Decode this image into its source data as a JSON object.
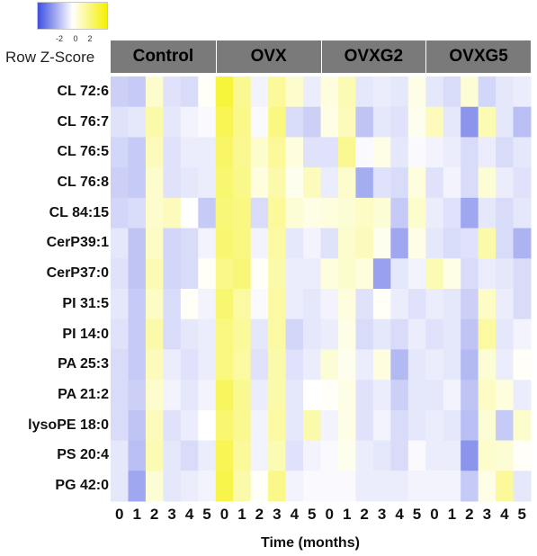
{
  "legend": {
    "title": "Row Z-Score",
    "ticks": [
      "-2",
      "0",
      "2"
    ],
    "colors": {
      "low": "#3f4fe0",
      "mid": "#ffffff",
      "high": "#f4f000"
    }
  },
  "chart_data": {
    "type": "heatmap",
    "xlabel": "Time (months)",
    "groups": [
      "Control",
      "OVX",
      "OVXG2",
      "OVXG5"
    ],
    "columns": [
      "0",
      "1",
      "2",
      "3",
      "4",
      "5",
      "0",
      "1",
      "2",
      "3",
      "4",
      "5",
      "0",
      "1",
      "2",
      "3",
      "4",
      "5",
      "0",
      "1",
      "2",
      "3",
      "4",
      "5"
    ],
    "rows": [
      "CL 72:6",
      "CL 76:7",
      "CL 76:5",
      "CL 76:8",
      "CL 84:15",
      "CerP39:1",
      "CerP37:0",
      "PI 31:5",
      "PI 14:0",
      "PA 25:3",
      "PA 21:2",
      "lysoPE 18:0",
      "PS 20:4",
      "PG 42:0"
    ],
    "value_range": [
      -3,
      3
    ],
    "values": [
      [
        -0.8,
        -0.9,
        0.6,
        -0.5,
        -0.6,
        0.1,
        2.3,
        1.3,
        -0.2,
        1.2,
        0.6,
        -0.3,
        0.4,
        0.9,
        -0.4,
        -0.3,
        -0.4,
        0.3,
        -0.4,
        -0.6,
        0.5,
        -0.7,
        -0.4,
        -0.3
      ],
      [
        -0.5,
        -0.4,
        1.0,
        -0.4,
        -0.2,
        -0.1,
        2.0,
        1.4,
        -0.1,
        1.5,
        -0.6,
        -0.8,
        0.3,
        0.8,
        -1.0,
        -0.4,
        -0.5,
        0.2,
        0.8,
        -0.4,
        -1.8,
        0.9,
        -0.4,
        -1.1
      ],
      [
        -0.7,
        -0.9,
        0.8,
        -0.5,
        -0.3,
        -0.3,
        1.8,
        1.3,
        0.6,
        1.2,
        0.4,
        -0.5,
        -0.5,
        1.3,
        -0.1,
        0.3,
        -0.4,
        -0.1,
        -0.2,
        -0.3,
        -0.6,
        -0.3,
        -0.6,
        -0.4
      ],
      [
        -0.8,
        -0.9,
        0.6,
        -0.5,
        -0.4,
        -0.3,
        1.7,
        1.4,
        0.4,
        1.0,
        0.2,
        0.8,
        -0.3,
        0.6,
        -1.4,
        -0.5,
        -0.6,
        0.4,
        -0.5,
        -0.2,
        -0.6,
        0.5,
        -0.3,
        -0.5
      ],
      [
        -0.7,
        -0.6,
        0.6,
        0.8,
        0.0,
        -0.9,
        1.6,
        1.5,
        -0.6,
        1.2,
        0.5,
        0.3,
        0.4,
        0.5,
        0.7,
        0.5,
        -0.9,
        0.6,
        -0.3,
        -0.5,
        -1.5,
        -0.4,
        -0.6,
        -0.4
      ],
      [
        -0.4,
        -1.0,
        0.7,
        -0.7,
        -0.6,
        -0.2,
        1.7,
        1.5,
        -0.2,
        1.1,
        -0.4,
        -0.2,
        -0.5,
        0.6,
        0.8,
        0.2,
        -1.5,
        0.3,
        -0.4,
        -0.6,
        -0.5,
        1.0,
        -0.6,
        -1.3
      ],
      [
        -0.5,
        -1.0,
        0.9,
        -0.7,
        -0.6,
        0.1,
        1.4,
        1.6,
        0.1,
        1.0,
        -0.3,
        -0.3,
        0.4,
        0.6,
        0.4,
        -1.6,
        -0.4,
        -0.2,
        0.9,
        0.3,
        -0.6,
        -0.3,
        -0.4,
        -0.6
      ],
      [
        -0.4,
        -0.9,
        0.7,
        -0.6,
        0.1,
        -0.2,
        1.7,
        1.1,
        -0.1,
        1.1,
        -0.3,
        -0.4,
        -0.2,
        0.4,
        -0.5,
        0.1,
        -0.3,
        -0.5,
        -0.3,
        -0.4,
        -0.8,
        0.7,
        -0.3,
        -0.6
      ],
      [
        -0.5,
        -0.9,
        1.0,
        -0.6,
        -0.4,
        -0.3,
        1.5,
        1.2,
        -0.4,
        1.1,
        -0.7,
        -0.4,
        -0.3,
        0.3,
        -0.6,
        -0.4,
        -0.6,
        -0.3,
        -0.5,
        -0.4,
        -1.0,
        1.1,
        -0.4,
        -0.2
      ],
      [
        -0.6,
        -0.9,
        0.8,
        -0.3,
        -0.5,
        -0.3,
        1.5,
        1.1,
        -0.5,
        1.0,
        -0.5,
        -0.3,
        0.5,
        0.2,
        -0.3,
        0.4,
        -1.2,
        -0.4,
        -0.3,
        -0.4,
        -1.2,
        0.5,
        -0.3,
        0.1
      ],
      [
        -0.6,
        -0.8,
        0.6,
        -0.2,
        -0.4,
        -0.2,
        1.9,
        1.3,
        -0.3,
        1.0,
        -0.4,
        0.0,
        0.1,
        0.3,
        -0.5,
        -0.3,
        -0.8,
        -0.4,
        -0.4,
        -0.2,
        -1.0,
        0.7,
        0.4,
        -0.3
      ],
      [
        -0.6,
        -1.0,
        0.8,
        -0.5,
        -0.3,
        0.0,
        1.7,
        1.3,
        -0.2,
        1.1,
        -0.4,
        1.0,
        -0.2,
        0.3,
        -0.5,
        -0.2,
        -0.6,
        -0.4,
        -0.3,
        -0.4,
        -1.1,
        0.5,
        -0.9,
        0.6
      ],
      [
        -0.4,
        -1.1,
        0.9,
        -0.4,
        -0.6,
        -0.3,
        2.0,
        1.2,
        -0.2,
        0.9,
        -0.5,
        -0.2,
        -0.1,
        0.2,
        -0.3,
        -0.4,
        -0.6,
        -0.1,
        -0.3,
        -0.3,
        -1.8,
        0.6,
        0.5,
        0.1
      ],
      [
        -0.4,
        -1.5,
        0.5,
        -0.4,
        -0.3,
        -0.2,
        2.1,
        1.0,
        0.1,
        1.4,
        -0.2,
        -0.1,
        -0.1,
        -0.1,
        -0.3,
        -0.3,
        -0.3,
        -0.2,
        -0.2,
        -0.2,
        -0.9,
        0.3,
        1.2,
        -0.4
      ]
    ]
  }
}
